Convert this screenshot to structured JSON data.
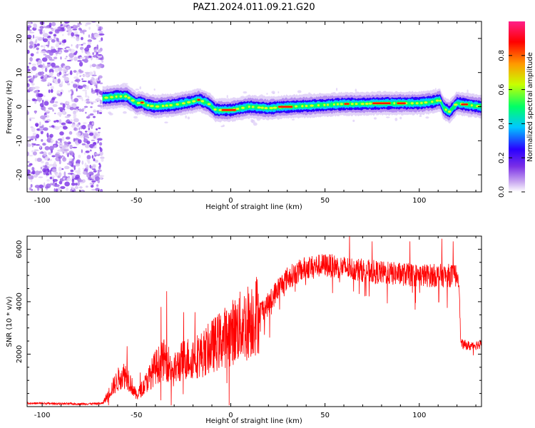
{
  "page_title": "PAZ1.2024.011.09.21.G20",
  "chart_data": [
    {
      "type": "heatmap",
      "id": "spectrogram",
      "xlabel": "Height of straight line (km)",
      "ylabel": "Frequency (Hz)",
      "xlim": [
        -108,
        133
      ],
      "ylim": [
        -25,
        25
      ],
      "x_ticks": [
        -100,
        -50,
        0,
        50,
        100
      ],
      "y_ticks": [
        -20,
        -10,
        0,
        10,
        20
      ],
      "colorbar": {
        "label": "Normalized spectral amplitude",
        "range": [
          0,
          1
        ],
        "ticks": [
          0.0,
          0.2,
          0.4,
          0.6,
          0.8
        ],
        "colormap": [
          "#ffffff",
          "#c8a6f0",
          "#7a2fe6",
          "#2a00ff",
          "#00c8ff",
          "#00ff66",
          "#c8ff00",
          "#ff9a00",
          "#ff0000",
          "#ff1f8a"
        ]
      },
      "noise_region_x": [
        -108,
        -68
      ],
      "ridge": [
        {
          "x": -68,
          "y": 2.5
        },
        {
          "x": -60,
          "y": 3.0
        },
        {
          "x": -55,
          "y": 3.0
        },
        {
          "x": -50,
          "y": 1.0
        },
        {
          "x": -47,
          "y": 1.2
        },
        {
          "x": -45,
          "y": 0.5
        },
        {
          "x": -40,
          "y": 0.0
        },
        {
          "x": -30,
          "y": 0.5
        },
        {
          "x": -20,
          "y": 1.5
        },
        {
          "x": -17,
          "y": 2.0
        },
        {
          "x": -12,
          "y": 1.0
        },
        {
          "x": -8,
          "y": -1.0
        },
        {
          "x": 0,
          "y": -1.0
        },
        {
          "x": 10,
          "y": 0.0
        },
        {
          "x": 20,
          "y": -0.5
        },
        {
          "x": 30,
          "y": 0.0
        },
        {
          "x": 40,
          "y": 0.2
        },
        {
          "x": 50,
          "y": 0.5
        },
        {
          "x": 60,
          "y": 0.8
        },
        {
          "x": 70,
          "y": 0.8
        },
        {
          "x": 80,
          "y": 1.0
        },
        {
          "x": 90,
          "y": 1.0
        },
        {
          "x": 100,
          "y": 1.0
        },
        {
          "x": 108,
          "y": 1.5
        },
        {
          "x": 111,
          "y": 2.0
        },
        {
          "x": 113,
          "y": -0.5
        },
        {
          "x": 116,
          "y": -1.5
        },
        {
          "x": 120,
          "y": 1.0
        },
        {
          "x": 126,
          "y": 0.5
        },
        {
          "x": 133,
          "y": 0.0
        }
      ],
      "ridge_peak_ranges": [
        [
          -48,
          -46
        ],
        [
          -18,
          -16
        ],
        [
          -5,
          3
        ],
        [
          25,
          33
        ],
        [
          60,
          63
        ],
        [
          75,
          85
        ],
        [
          88,
          93
        ],
        [
          122,
          126
        ]
      ]
    },
    {
      "type": "line",
      "id": "snr",
      "xlabel": "Height of straight line (km)",
      "ylabel": "SNR (10 * v/v)",
      "xlim": [
        -108,
        133
      ],
      "ylim": [
        0,
        6500
      ],
      "x_ticks": [
        -100,
        -50,
        0,
        50,
        100
      ],
      "y_ticks": [
        2000,
        4000,
        6000
      ],
      "color": "#ff0000",
      "envelope": [
        {
          "x": -108,
          "y": 130
        },
        {
          "x": -80,
          "y": 100
        },
        {
          "x": -68,
          "y": 120
        },
        {
          "x": -63,
          "y": 700
        },
        {
          "x": -58,
          "y": 1200
        },
        {
          "x": -55,
          "y": 1200
        },
        {
          "x": -50,
          "y": 400
        },
        {
          "x": -45,
          "y": 900
        },
        {
          "x": -40,
          "y": 1500
        },
        {
          "x": -35,
          "y": 1800
        },
        {
          "x": -30,
          "y": 1400
        },
        {
          "x": -25,
          "y": 1800
        },
        {
          "x": -15,
          "y": 2000
        },
        {
          "x": -10,
          "y": 2300
        },
        {
          "x": 0,
          "y": 2800
        },
        {
          "x": 10,
          "y": 3300
        },
        {
          "x": 20,
          "y": 3900
        },
        {
          "x": 25,
          "y": 4500
        },
        {
          "x": 30,
          "y": 4900
        },
        {
          "x": 40,
          "y": 5300
        },
        {
          "x": 50,
          "y": 5400
        },
        {
          "x": 60,
          "y": 5300
        },
        {
          "x": 70,
          "y": 5200
        },
        {
          "x": 80,
          "y": 5100
        },
        {
          "x": 90,
          "y": 5050
        },
        {
          "x": 100,
          "y": 5000
        },
        {
          "x": 110,
          "y": 5000
        },
        {
          "x": 121,
          "y": 5000
        },
        {
          "x": 122,
          "y": 2400
        },
        {
          "x": 127,
          "y": 2300
        },
        {
          "x": 133,
          "y": 2400
        }
      ],
      "spikes": [
        {
          "x": -55,
          "y": 2300
        },
        {
          "x": -48,
          "y": 1300
        },
        {
          "x": -37,
          "y": 3800
        },
        {
          "x": -34,
          "y": 4400
        },
        {
          "x": -25,
          "y": 3600
        },
        {
          "x": -19,
          "y": 3600
        },
        {
          "x": -7,
          "y": 3300
        },
        {
          "x": 63,
          "y": 6600
        },
        {
          "x": 75,
          "y": 6300
        },
        {
          "x": 95,
          "y": 6300
        },
        {
          "x": 112,
          "y": 6400
        },
        {
          "x": 118,
          "y": 6300
        }
      ]
    }
  ]
}
